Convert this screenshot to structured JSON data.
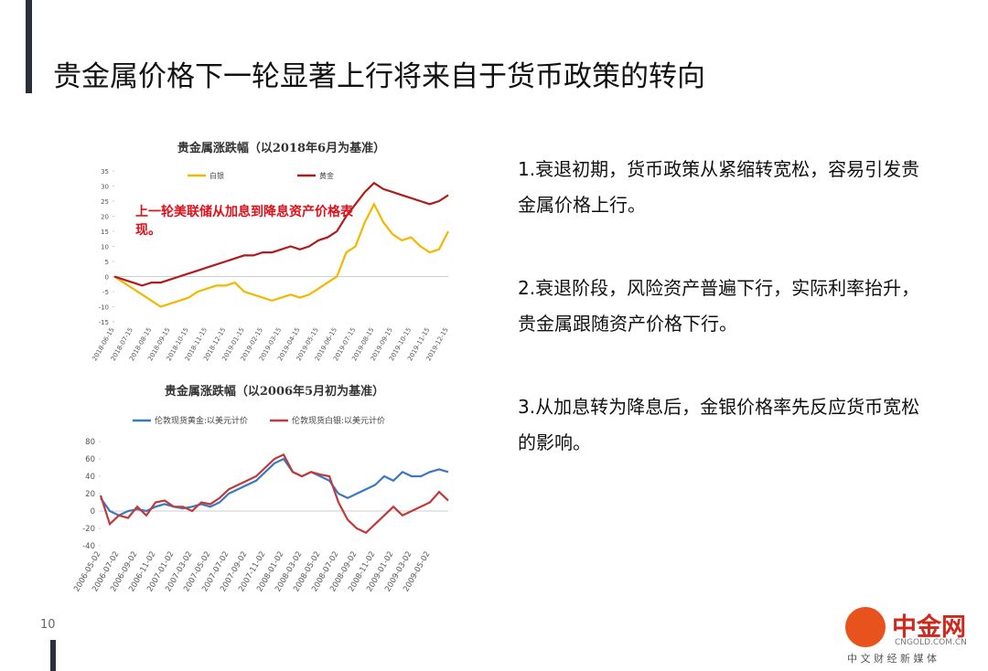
{
  "slide": {
    "title": "贵金属价格下一轮显著上行将来自于货币政策的转向",
    "paragraphs": [
      "1.衰退初期，货币政策从紧缩转宽松，容易引发贵金属价格上行。",
      "2.衰退阶段，风险资产普遍下行，实际利率抬升，贵金属跟随资产价格下行。",
      "3.从加息转为降息后，金银价格率先反应货币宽松的影响。"
    ],
    "page_number": "10",
    "logo": {
      "name": "中金网",
      "url": "CNGOLD.COM.CN",
      "tagline": "中 文 财 经 新 媒 体"
    }
  },
  "chart_data": [
    {
      "type": "line",
      "title": "贵金属涨跌幅（以2018年6月为基准）",
      "annotation": "上一轮美联储从加息到降息资产价格表现。",
      "categories": [
        "2018-06-15",
        null,
        "2018-07-15",
        null,
        "2018-08-15",
        null,
        "2018-09-15",
        null,
        "2018-10-15",
        null,
        "2018-11-15",
        null,
        "2018-12-15",
        null,
        "2019-01-15",
        null,
        "2019-02-15",
        null,
        "2019-03-15",
        null,
        "2019-04-15",
        null,
        "2019-05-15",
        null,
        "2019-06-15",
        null,
        "2019-07-15",
        null,
        "2019-08-15",
        null,
        "2019-09-15",
        null,
        "2019-10-15",
        null,
        "2019-11-15",
        null,
        "2019-12-15"
      ],
      "series": [
        {
          "name": "白银",
          "color": "#f2b800",
          "values": [
            0,
            -2,
            -4,
            -6,
            -8,
            -10,
            -9,
            -8,
            -7,
            -5,
            -4,
            -3,
            -3,
            -2,
            -5,
            -6,
            -7,
            -8,
            -7,
            -6,
            -7,
            -6,
            -4,
            -2,
            0,
            8,
            10,
            18,
            24,
            18,
            14,
            12,
            13,
            10,
            8,
            9,
            15
          ]
        },
        {
          "name": "黄金",
          "color": "#b01c1c",
          "values": [
            0,
            -1,
            -2,
            -3,
            -2,
            -2,
            -1,
            0,
            1,
            2,
            3,
            4,
            5,
            6,
            7,
            7,
            8,
            8,
            9,
            10,
            9,
            10,
            12,
            13,
            15,
            20,
            24,
            28,
            31,
            29,
            28,
            27,
            26,
            25,
            24,
            25,
            27
          ]
        }
      ],
      "ylim": [
        -15,
        35
      ],
      "yticks": [
        -15,
        -10,
        -5,
        0,
        5,
        10,
        15,
        20,
        25,
        30,
        35
      ],
      "grid": false
    },
    {
      "type": "line",
      "title": "贵金属涨跌幅（以2006年5月初为基准）",
      "categories": [
        "2006-05-02",
        null,
        "2006-07-02",
        null,
        "2006-09-02",
        null,
        "2006-11-02",
        null,
        "2007-01-02",
        null,
        "2007-03-02",
        null,
        "2007-05-02",
        null,
        "2007-07-02",
        null,
        "2007-09-02",
        null,
        "2007-11-02",
        null,
        "2008-01-02",
        null,
        "2008-03-02",
        null,
        "2008-05-02",
        null,
        "2008-07-02",
        null,
        "2008-09-02",
        null,
        "2008-11-02",
        null,
        "2009-01-02",
        null,
        "2009-03-02",
        null,
        "2009-05-02",
        null,
        null
      ],
      "series": [
        {
          "name": "伦敦现货黄金:以美元计价",
          "color": "#3c78c0",
          "values": [
            15,
            0,
            -5,
            0,
            2,
            0,
            5,
            8,
            5,
            3,
            5,
            8,
            5,
            10,
            20,
            25,
            30,
            35,
            45,
            55,
            60,
            45,
            40,
            45,
            40,
            35,
            20,
            15,
            20,
            25,
            30,
            40,
            35,
            45,
            40,
            40,
            45,
            48,
            45
          ]
        },
        {
          "name": "伦敦现货白银:以美元计价",
          "color": "#c0393b",
          "values": [
            18,
            -15,
            -5,
            -8,
            5,
            -5,
            10,
            12,
            5,
            5,
            0,
            10,
            8,
            15,
            25,
            30,
            35,
            40,
            50,
            60,
            65,
            45,
            40,
            45,
            42,
            40,
            10,
            -10,
            -20,
            -25,
            -15,
            -5,
            5,
            -5,
            0,
            5,
            10,
            22,
            12
          ]
        }
      ],
      "ylim": [
        -40,
        80
      ],
      "yticks": [
        -40,
        -20,
        0,
        20,
        40,
        60,
        80
      ],
      "grid": false
    }
  ]
}
